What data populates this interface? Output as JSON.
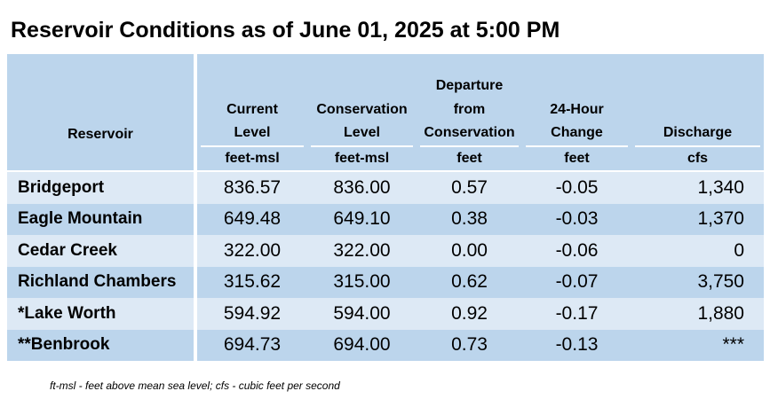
{
  "title": "Reservoir Conditions as of June 01, 2025 at 5:00 PM",
  "columns": [
    {
      "lines": [
        "Reservoir"
      ],
      "unit": ""
    },
    {
      "lines": [
        "Current",
        "Level"
      ],
      "unit": "feet-msl"
    },
    {
      "lines": [
        "Conservation",
        "Level"
      ],
      "unit": "feet-msl"
    },
    {
      "lines": [
        "Departure",
        "from",
        "Conservation"
      ],
      "unit": "feet"
    },
    {
      "lines": [
        "24-Hour",
        "Change"
      ],
      "unit": "feet"
    },
    {
      "lines": [
        "Discharge"
      ],
      "unit": "cfs"
    }
  ],
  "rows": [
    {
      "reservoir": "Bridgeport",
      "current": "836.57",
      "conservation": "836.00",
      "departure": "0.57",
      "change": "-0.05",
      "discharge": "1,340"
    },
    {
      "reservoir": "Eagle Mountain",
      "current": "649.48",
      "conservation": "649.10",
      "departure": "0.38",
      "change": "-0.03",
      "discharge": "1,370"
    },
    {
      "reservoir": "Cedar Creek",
      "current": "322.00",
      "conservation": "322.00",
      "departure": "0.00",
      "change": "-0.06",
      "discharge": "0"
    },
    {
      "reservoir": "Richland Chambers",
      "current": "315.62",
      "conservation": "315.00",
      "departure": "0.62",
      "change": "-0.07",
      "discharge": "3,750"
    },
    {
      "reservoir": "*Lake Worth",
      "current": "594.92",
      "conservation": "594.00",
      "departure": "0.92",
      "change": "-0.17",
      "discharge": "1,880"
    },
    {
      "reservoir": "**Benbrook",
      "current": "694.73",
      "conservation": "694.00",
      "departure": "0.73",
      "change": "-0.13",
      "discharge": "***"
    }
  ],
  "footnote": "ft-msl - feet above mean sea level; cfs - cubic feet per second",
  "colors": {
    "header_bg": "#bcd5ec",
    "row_light": "#dde9f5",
    "row_dark": "#bcd5ec",
    "separator": "#ffffff"
  }
}
